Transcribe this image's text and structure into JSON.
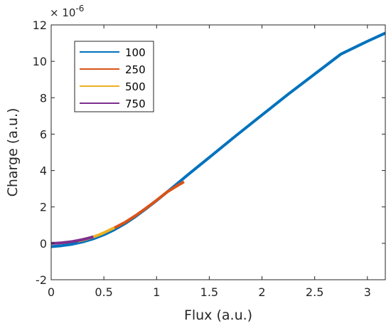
{
  "chart_data": {
    "type": "line",
    "xlabel": "Flux (a.u.)",
    "ylabel": "Charge (a.u.)",
    "y_exponent_label": "× 10",
    "y_exponent_power": "-6",
    "xlim": [
      0,
      3.17
    ],
    "ylim": [
      -2,
      12
    ],
    "xticks": [
      0,
      0.5,
      1,
      1.5,
      2,
      2.5,
      3
    ],
    "xtick_labels": [
      "0",
      "0.5",
      "1",
      "1.5",
      "2",
      "2.5",
      "3"
    ],
    "yticks": [
      -2,
      0,
      2,
      4,
      6,
      8,
      10,
      12
    ],
    "ytick_labels": [
      "-2",
      "0",
      "2",
      "4",
      "6",
      "8",
      "10",
      "12"
    ],
    "legend_position": "top-left",
    "grid": false,
    "series": [
      {
        "name": "100",
        "color": "#0072BD",
        "x": [
          0,
          0.1,
          0.2,
          0.3,
          0.4,
          0.5,
          0.6,
          0.7,
          0.8,
          0.9,
          1.0,
          1.1,
          1.2,
          1.3,
          1.5,
          1.75,
          2.0,
          2.25,
          2.5,
          2.75,
          3.0,
          3.17
        ],
        "y": [
          -0.18,
          -0.13,
          -0.05,
          0.08,
          0.25,
          0.47,
          0.75,
          1.08,
          1.47,
          1.9,
          2.35,
          2.82,
          3.3,
          3.78,
          4.72,
          5.9,
          7.05,
          8.2,
          9.3,
          10.4,
          11.1,
          11.55
        ]
      },
      {
        "name": "250",
        "color": "#D95319",
        "x": [
          0.6,
          0.7,
          0.8,
          0.9,
          1.0,
          1.1,
          1.2,
          1.26
        ],
        "y": [
          0.85,
          1.15,
          1.52,
          1.93,
          2.37,
          2.82,
          3.18,
          3.38
        ]
      },
      {
        "name": "500",
        "color": "#EDB120",
        "x": [
          0.25,
          0.3,
          0.35,
          0.4,
          0.45,
          0.5,
          0.55,
          0.6
        ],
        "y": [
          0.12,
          0.18,
          0.26,
          0.35,
          0.46,
          0.58,
          0.72,
          0.86
        ]
      },
      {
        "name": "750",
        "color": "#7E2F8E",
        "x": [
          0,
          0.05,
          0.1,
          0.15,
          0.2,
          0.25,
          0.3,
          0.35,
          0.4
        ],
        "y": [
          0.0,
          0.01,
          0.03,
          0.06,
          0.1,
          0.15,
          0.21,
          0.28,
          0.36
        ]
      }
    ]
  }
}
